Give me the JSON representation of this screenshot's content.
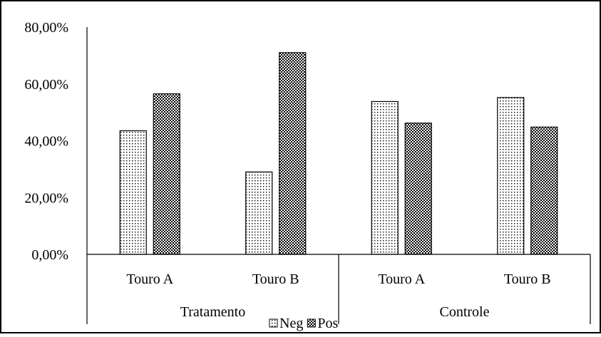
{
  "chart_data": {
    "type": "bar",
    "y_ticks": [
      "0,00%",
      "20,00%",
      "40,00%",
      "60,00%",
      "80,00%"
    ],
    "ylim": [
      0,
      80
    ],
    "groups": [
      {
        "label": "Tratamento",
        "categories": [
          "Touro A",
          "Touro B"
        ]
      },
      {
        "label": "Controle",
        "categories": [
          "Touro A",
          "Touro B"
        ]
      }
    ],
    "categories": [
      "Tratamento - Touro A",
      "Tratamento - Touro B",
      "Controle - Touro A",
      "Controle - Touro B"
    ],
    "series": [
      {
        "name": "Neg",
        "values": [
          43.5,
          29.0,
          53.8,
          55.2
        ],
        "pattern": "dots"
      },
      {
        "name": "Pos",
        "values": [
          56.5,
          71.0,
          46.2,
          44.8
        ],
        "pattern": "checker"
      }
    ],
    "legend_position": "bottom",
    "grid": false
  }
}
